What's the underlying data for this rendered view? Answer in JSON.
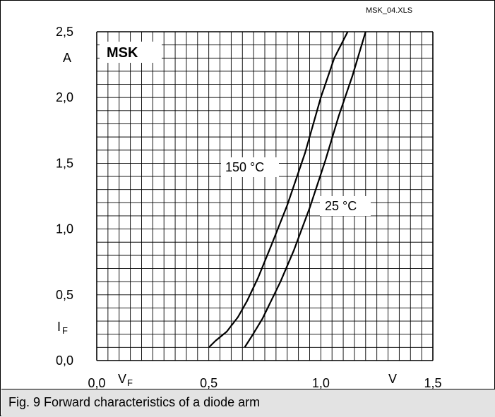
{
  "file_name": "MSK_04.XLS",
  "caption": "Fig. 9 Forward characteristics of a diode arm",
  "chart_data": {
    "type": "line",
    "title": "",
    "badge": "MSK",
    "xlabel": "V",
    "x_symbol": "V",
    "x_symbol_sub": "F",
    "ylabel": "A",
    "y_symbol": "I",
    "y_symbol_sub": "F",
    "xlim": [
      0.0,
      1.5
    ],
    "ylim": [
      0.0,
      2.5
    ],
    "x_tick_labels": [
      "0,0",
      "0,5",
      "1,0",
      "1,5"
    ],
    "y_tick_labels": [
      "0,0",
      "0,5",
      "1,0",
      "1,5",
      "2,0",
      "2,5"
    ],
    "grid": true,
    "series": [
      {
        "name": "150 °C",
        "x": [
          0.5,
          0.53,
          0.58,
          0.63,
          0.67,
          0.72,
          0.78,
          0.85,
          0.93,
          1.0,
          1.06,
          1.12
        ],
        "y": [
          0.1,
          0.15,
          0.22,
          0.33,
          0.45,
          0.63,
          0.88,
          1.18,
          1.58,
          2.0,
          2.3,
          2.5
        ]
      },
      {
        "name": "25 °C",
        "x": [
          0.66,
          0.69,
          0.74,
          0.78,
          0.82,
          0.88,
          0.95,
          1.02,
          1.08,
          1.14,
          1.2
        ],
        "y": [
          0.1,
          0.18,
          0.32,
          0.46,
          0.6,
          0.84,
          1.16,
          1.52,
          1.86,
          2.16,
          2.5
        ]
      }
    ]
  }
}
